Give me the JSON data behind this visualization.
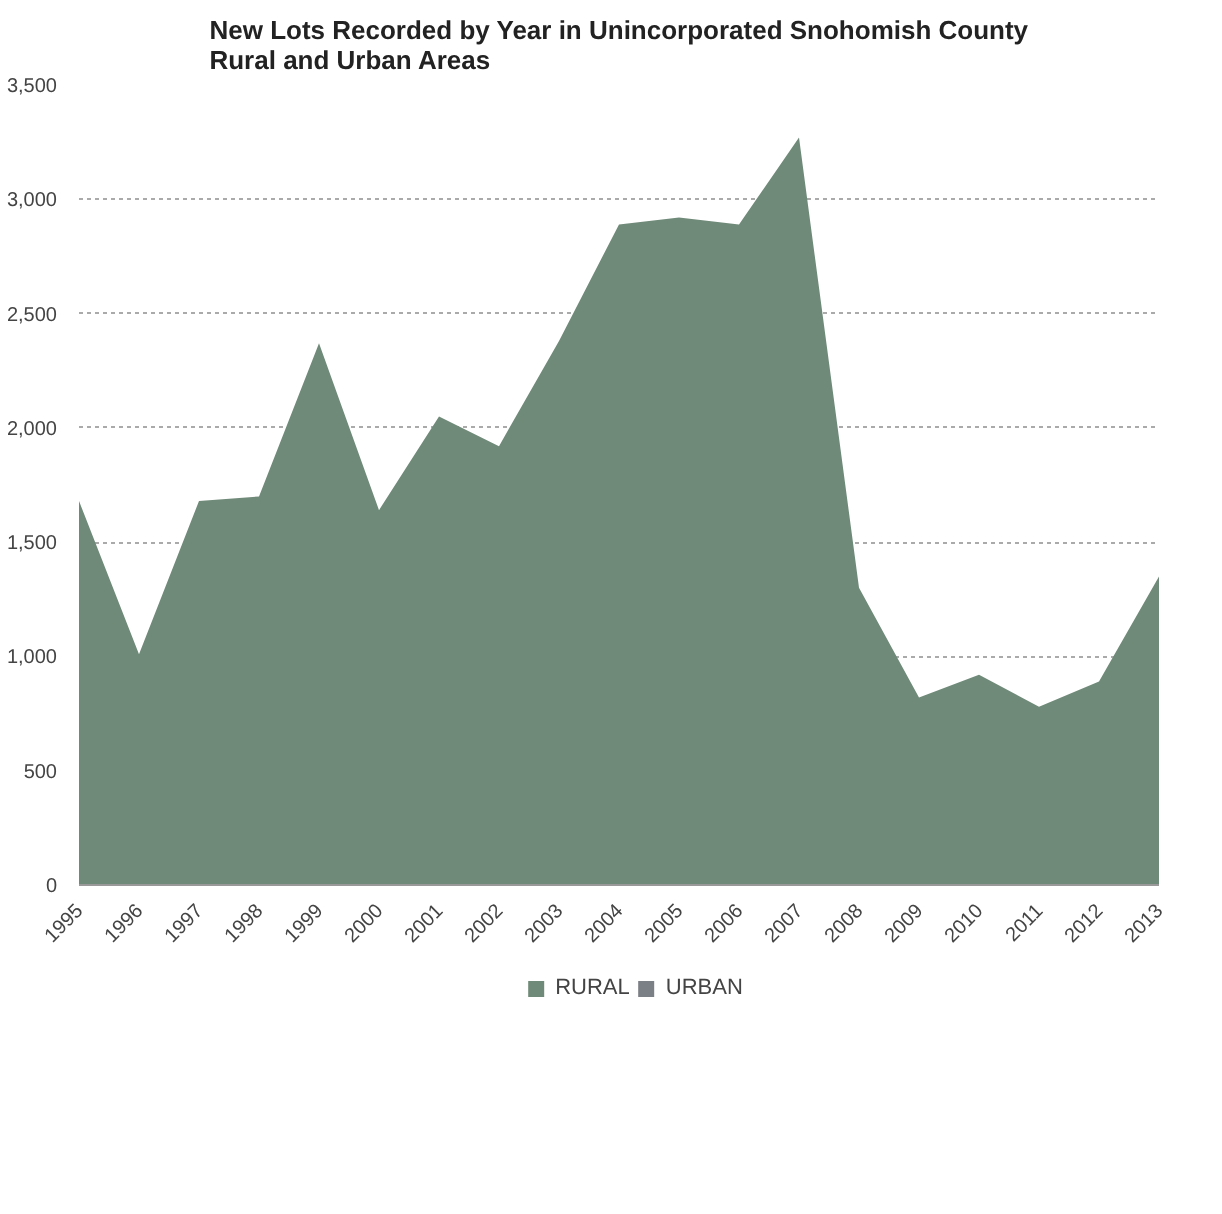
{
  "chart_data": {
    "type": "area",
    "title": "New Lots Recorded by Year in Unincorporated Snohomish County\nRural and Urban Areas",
    "categories": [
      "1995",
      "1996",
      "1997",
      "1998",
      "1999",
      "2000",
      "2001",
      "2002",
      "2003",
      "2004",
      "2005",
      "2006",
      "2007",
      "2008",
      "2009",
      "2010",
      "2011",
      "2012",
      "2013"
    ],
    "series": [
      {
        "name": "RURAL",
        "color": "#6f8a78",
        "values": [
          1680,
          1010,
          1680,
          1700,
          2370,
          1640,
          2050,
          1920,
          2380,
          2890,
          2920,
          2890,
          3270,
          1300,
          820,
          920,
          780,
          890,
          1350
        ]
      },
      {
        "name": "URBAN",
        "color": "#7b7f86",
        "values": [
          null,
          null,
          null,
          null,
          null,
          null,
          null,
          null,
          null,
          null,
          null,
          null,
          null,
          null,
          null,
          null,
          null,
          null,
          null
        ]
      }
    ],
    "ylim": [
      0,
      3500
    ],
    "yticks": [
      {
        "value": 0,
        "label": "0"
      },
      {
        "value": 500,
        "label": "500"
      },
      {
        "value": 1000,
        "label": "1,000"
      },
      {
        "value": 1500,
        "label": "1,500"
      },
      {
        "value": 2000,
        "label": "2,000"
      },
      {
        "value": 2500,
        "label": "2,500"
      },
      {
        "value": 3000,
        "label": "3,000"
      },
      {
        "value": 3500,
        "label": "3,500"
      }
    ],
    "grid": "y",
    "legend": "bottom"
  }
}
